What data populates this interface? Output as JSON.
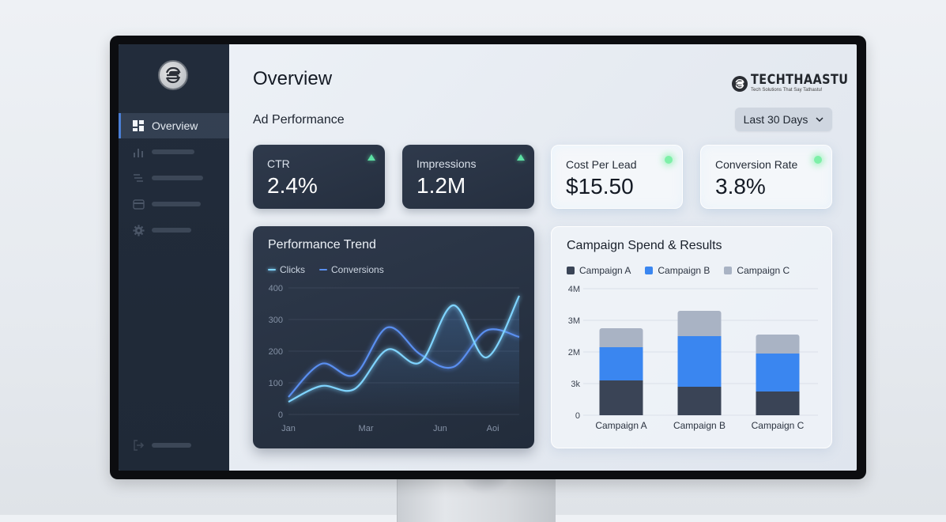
{
  "sidebar": {
    "items": [
      {
        "label": "Overview",
        "icon": "dashboard-grid-icon",
        "active": true
      },
      {
        "label": "",
        "icon": "bar-chart-icon"
      },
      {
        "label": "",
        "icon": "filter-lines-icon"
      },
      {
        "label": "",
        "icon": "credit-card-icon"
      },
      {
        "label": "",
        "icon": "gear-icon"
      }
    ],
    "footer": {
      "label": "",
      "icon": "logout-icon"
    }
  },
  "header": {
    "title": "Overview",
    "subtitle": "Ad Performance",
    "brand": {
      "name": "TECHTHAASTU",
      "tagline": "Tech Solutions That Say Tathastu!"
    },
    "date_range": {
      "selected": "Last 30 Days",
      "icon": "chevron-down-icon"
    }
  },
  "kpis": [
    {
      "label": "CTR",
      "value": "2.4%",
      "indicator": "up-triangle",
      "theme": "dark"
    },
    {
      "label": "Impressions",
      "value": "1.2M",
      "indicator": "up-triangle",
      "theme": "dark"
    },
    {
      "label": "Cost Per Lead",
      "value": "$15.50",
      "indicator": "green-dot",
      "theme": "light"
    },
    {
      "label": "Conversion Rate",
      "value": "3.8%",
      "indicator": "green-dot",
      "theme": "light"
    }
  ],
  "colors": {
    "accent": "#4a7fd6",
    "clicks": "#7fd4ff",
    "conversions": "#5a8ff0",
    "campaign_a": "#3a4456",
    "campaign_b": "#3a86f0",
    "campaign_c": "#a9b3c4",
    "positive": "#5ce0a4"
  },
  "chart_data": [
    {
      "type": "line",
      "title": "Performance Trend",
      "x": [
        "Jan",
        "",
        "Mar",
        "",
        "Jun",
        "",
        "Aoi",
        ""
      ],
      "xticks": [
        "Jan",
        "Mar",
        "Jun",
        "Aoi"
      ],
      "series": [
        {
          "name": "Clicks",
          "values": [
            40,
            90,
            80,
            205,
            165,
            345,
            180,
            375
          ]
        },
        {
          "name": "Conversions",
          "values": [
            55,
            160,
            125,
            275,
            190,
            150,
            265,
            245
          ]
        }
      ],
      "yticks": [
        "0",
        "100",
        "200",
        "300",
        "400"
      ],
      "ylim": [
        0,
        400
      ],
      "grid": true,
      "legend_position": "top-left"
    },
    {
      "type": "bar",
      "stacked": true,
      "title": "Campaign Spend & Results",
      "categories": [
        "Campaign A",
        "Campaign B",
        "Campaign C"
      ],
      "series": [
        {
          "name": "Campaign A",
          "values": [
            1.1,
            0.9,
            0.75
          ]
        },
        {
          "name": "Campaign B",
          "values": [
            1.05,
            1.6,
            1.2
          ]
        },
        {
          "name": "Campaign C",
          "values": [
            0.6,
            0.8,
            0.6
          ]
        }
      ],
      "yticks": [
        "0",
        "3k",
        "2M",
        "3M",
        "4M"
      ],
      "ylim": [
        0,
        4
      ],
      "ylabel_unit": "M",
      "grid": true,
      "legend_position": "top-left"
    }
  ]
}
